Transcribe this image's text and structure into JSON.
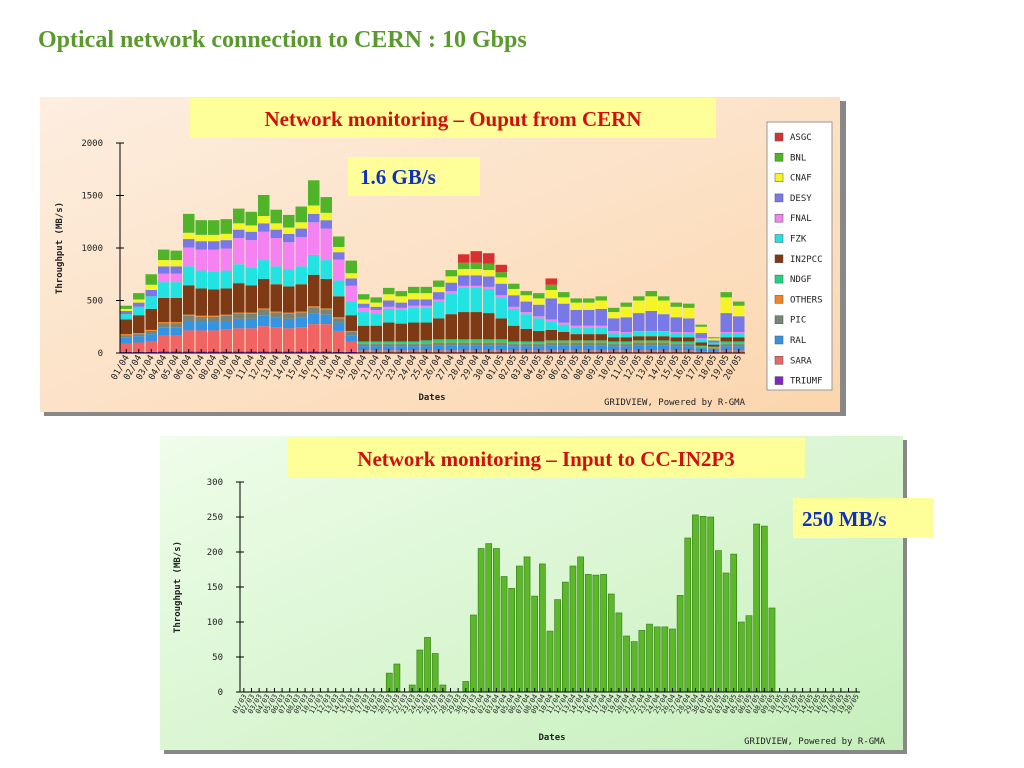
{
  "title": "Optical network connection to CERN : 10 Gbps",
  "chart_data": [
    {
      "type": "stacked_bar",
      "title": "Network monitoring – Ouput from CERN",
      "annotation": "1.6 GB/s",
      "xlabel": "Dates",
      "ylabel": "Throughput (MB/s)",
      "credit": "GRIDVIEW, Powered by R-GMA",
      "ylim": [
        0,
        2000
      ],
      "yticks": [
        0,
        500,
        1000,
        1500,
        2000
      ],
      "categories": [
        "01/04",
        "02/04",
        "03/04",
        "04/04",
        "05/04",
        "06/04",
        "07/04",
        "08/04",
        "09/04",
        "10/04",
        "11/04",
        "12/04",
        "13/04",
        "14/04",
        "15/04",
        "16/04",
        "17/04",
        "18/04",
        "19/04",
        "20/04",
        "21/04",
        "22/04",
        "23/04",
        "24/04",
        "25/04",
        "26/04",
        "27/04",
        "28/04",
        "29/04",
        "30/04",
        "01/05",
        "02/05",
        "03/05",
        "04/05",
        "05/05",
        "06/05",
        "07/05",
        "08/05",
        "09/05",
        "10/05",
        "11/05",
        "12/05",
        "13/05",
        "14/05",
        "15/05",
        "16/05",
        "17/05",
        "18/05",
        "19/05",
        "20/05"
      ],
      "series": [
        {
          "name": "ASGC",
          "color": "#d83030",
          "values": [
            0,
            0,
            0,
            0,
            0,
            0,
            0,
            0,
            0,
            0,
            0,
            0,
            0,
            0,
            0,
            0,
            0,
            0,
            0,
            0,
            0,
            0,
            0,
            0,
            0,
            0,
            0,
            80,
            110,
            100,
            70,
            0,
            0,
            0,
            60,
            0,
            0,
            0,
            0,
            0,
            0,
            0,
            0,
            0,
            0,
            0,
            0,
            0,
            0,
            0
          ]
        },
        {
          "name": "BNL",
          "color": "#50b428",
          "values": [
            30,
            60,
            100,
            100,
            90,
            180,
            140,
            140,
            140,
            140,
            130,
            200,
            130,
            120,
            150,
            240,
            150,
            100,
            120,
            50,
            50,
            60,
            50,
            60,
            60,
            60,
            60,
            60,
            60,
            60,
            50,
            50,
            40,
            50,
            50,
            50,
            40,
            40,
            40,
            40,
            40,
            40,
            50,
            40,
            40,
            40,
            20,
            10,
            50,
            40
          ]
        },
        {
          "name": "CNAF",
          "color": "#f4f428",
          "values": [
            20,
            30,
            50,
            60,
            60,
            60,
            60,
            60,
            60,
            60,
            60,
            70,
            60,
            60,
            60,
            80,
            70,
            50,
            50,
            40,
            40,
            60,
            60,
            60,
            60,
            50,
            60,
            60,
            60,
            60,
            60,
            60,
            60,
            60,
            80,
            60,
            70,
            70,
            80,
            60,
            100,
            120,
            140,
            130,
            100,
            100,
            60,
            20,
            150,
            100
          ]
        },
        {
          "name": "DESY",
          "color": "#7878e6",
          "values": [
            30,
            40,
            60,
            70,
            70,
            80,
            80,
            80,
            80,
            80,
            80,
            80,
            80,
            80,
            80,
            80,
            80,
            70,
            70,
            40,
            30,
            60,
            50,
            60,
            60,
            70,
            80,
            100,
            100,
            100,
            110,
            110,
            100,
            110,
            200,
            180,
            150,
            150,
            160,
            120,
            140,
            170,
            190,
            160,
            140,
            130,
            50,
            20,
            180,
            150
          ]
        },
        {
          "name": "FNAL",
          "color": "#f482f0",
          "values": [
            0,
            0,
            0,
            80,
            80,
            180,
            200,
            210,
            210,
            250,
            260,
            270,
            270,
            260,
            280,
            310,
            300,
            200,
            150,
            40,
            30,
            20,
            20,
            20,
            20,
            20,
            20,
            20,
            20,
            20,
            20,
            20,
            20,
            20,
            20,
            20,
            20,
            20,
            20,
            20,
            10,
            10,
            10,
            10,
            10,
            10,
            10,
            0,
            10,
            10
          ]
        },
        {
          "name": "FZK",
          "color": "#22e2e2",
          "values": [
            50,
            80,
            120,
            150,
            150,
            180,
            170,
            170,
            170,
            180,
            170,
            180,
            170,
            160,
            170,
            190,
            180,
            150,
            130,
            130,
            120,
            130,
            130,
            140,
            140,
            160,
            200,
            230,
            230,
            230,
            200,
            160,
            140,
            120,
            80,
            70,
            60,
            60,
            60,
            40,
            40,
            40,
            40,
            40,
            40,
            40,
            30,
            20,
            40,
            40
          ]
        },
        {
          "name": "IN2PCC",
          "color": "#7e3a14",
          "values": [
            140,
            170,
            200,
            230,
            230,
            280,
            260,
            250,
            250,
            280,
            260,
            280,
            260,
            250,
            260,
            300,
            280,
            200,
            150,
            150,
            150,
            180,
            170,
            180,
            170,
            200,
            240,
            260,
            260,
            250,
            200,
            150,
            120,
            100,
            100,
            80,
            60,
            60,
            60,
            40,
            40,
            40,
            40,
            40,
            40,
            40,
            30,
            20,
            40,
            40
          ]
        },
        {
          "name": "NDGF",
          "color": "#20d482",
          "values": [
            0,
            0,
            0,
            0,
            0,
            0,
            0,
            0,
            0,
            0,
            0,
            0,
            0,
            0,
            0,
            0,
            0,
            0,
            0,
            20,
            20,
            20,
            20,
            20,
            30,
            30,
            30,
            30,
            30,
            30,
            30,
            20,
            20,
            20,
            20,
            20,
            20,
            20,
            20,
            20,
            20,
            20,
            20,
            20,
            20,
            20,
            10,
            10,
            20,
            20
          ]
        },
        {
          "name": "OTHERS",
          "color": "#f08424",
          "values": [
            10,
            10,
            10,
            10,
            10,
            10,
            10,
            10,
            10,
            10,
            10,
            10,
            10,
            10,
            10,
            10,
            10,
            10,
            10,
            5,
            5,
            5,
            5,
            5,
            5,
            5,
            5,
            5,
            5,
            5,
            5,
            5,
            5,
            5,
            5,
            5,
            5,
            5,
            5,
            5,
            5,
            5,
            5,
            5,
            5,
            5,
            5,
            5,
            5,
            5
          ]
        },
        {
          "name": "PIC",
          "color": "#788478",
          "values": [
            20,
            20,
            30,
            40,
            40,
            50,
            50,
            50,
            50,
            50,
            50,
            60,
            50,
            50,
            50,
            60,
            50,
            40,
            30,
            20,
            20,
            20,
            20,
            20,
            20,
            20,
            20,
            20,
            20,
            20,
            20,
            20,
            20,
            20,
            20,
            20,
            20,
            20,
            20,
            20,
            20,
            20,
            20,
            20,
            20,
            20,
            10,
            10,
            20,
            20
          ]
        },
        {
          "name": "RAL",
          "color": "#3494e2",
          "values": [
            60,
            60,
            70,
            80,
            80,
            90,
            80,
            80,
            80,
            90,
            90,
            100,
            90,
            90,
            90,
            100,
            90,
            80,
            60,
            40,
            40,
            40,
            40,
            40,
            40,
            50,
            50,
            50,
            50,
            50,
            50,
            40,
            40,
            40,
            50,
            50,
            50,
            50,
            50,
            40,
            40,
            50,
            50,
            50,
            40,
            40,
            30,
            20,
            40,
            40
          ]
        },
        {
          "name": "SARA",
          "color": "#f06464",
          "values": [
            80,
            90,
            100,
            150,
            150,
            200,
            200,
            200,
            210,
            220,
            220,
            240,
            230,
            220,
            230,
            260,
            260,
            200,
            100,
            20,
            20,
            20,
            20,
            20,
            20,
            20,
            20,
            20,
            20,
            20,
            20,
            20,
            20,
            20,
            20,
            20,
            20,
            20,
            20,
            20,
            20,
            20,
            20,
            20,
            20,
            20,
            10,
            10,
            20,
            20
          ]
        },
        {
          "name": "TRIUMF",
          "color": "#8424c4",
          "values": [
            10,
            10,
            10,
            15,
            15,
            15,
            15,
            15,
            15,
            15,
            15,
            15,
            15,
            15,
            15,
            15,
            15,
            10,
            10,
            5,
            5,
            5,
            5,
            5,
            5,
            5,
            5,
            5,
            5,
            5,
            5,
            5,
            5,
            5,
            5,
            5,
            5,
            5,
            5,
            5,
            5,
            5,
            5,
            5,
            5,
            5,
            5,
            5,
            5,
            5
          ]
        }
      ]
    },
    {
      "type": "bar",
      "title": "Network monitoring – Input to CC-IN2P3",
      "annotation": "250 MB/s",
      "xlabel": "Dates",
      "ylabel": "Throughput (MB/s)",
      "credit": "GRIDVIEW, Powered by R-GMA",
      "ylim": [
        0,
        300
      ],
      "yticks": [
        0,
        50,
        100,
        150,
        200,
        250,
        300
      ],
      "color": "#5cb82a",
      "categories": [
        "01/03",
        "02/03",
        "03/03",
        "04/03",
        "05/03",
        "06/03",
        "07/03",
        "08/03",
        "09/03",
        "10/03",
        "11/03",
        "12/03",
        "13/03",
        "14/03",
        "15/03",
        "16/03",
        "17/03",
        "18/03",
        "19/03",
        "20/03",
        "21/03",
        "22/03",
        "23/03",
        "24/03",
        "25/03",
        "26/03",
        "27/03",
        "28/03",
        "29/03",
        "30/03",
        "31/03",
        "01/04",
        "02/04",
        "03/04",
        "04/04",
        "05/04",
        "06/04",
        "07/04",
        "08/04",
        "09/04",
        "10/04",
        "11/04",
        "12/04",
        "13/04",
        "14/04",
        "15/04",
        "16/04",
        "17/04",
        "18/04",
        "19/04",
        "20/04",
        "21/04",
        "22/04",
        "23/04",
        "24/04",
        "25/04",
        "26/04",
        "27/04",
        "28/04",
        "29/04",
        "30/04",
        "01/05",
        "02/05",
        "03/05",
        "04/05",
        "05/05",
        "06/05",
        "07/05",
        "08/05",
        "09/05",
        "10/05",
        "11/05",
        "12/05",
        "13/05",
        "14/05",
        "15/05",
        "16/05",
        "17/05",
        "18/05",
        "19/05",
        "20/05"
      ],
      "values": [
        0,
        0,
        0,
        0,
        0,
        0,
        0,
        0,
        0,
        0,
        0,
        0,
        0,
        0,
        0,
        0,
        0,
        0,
        0,
        27,
        40,
        0,
        10,
        60,
        78,
        55,
        10,
        0,
        0,
        15,
        110,
        205,
        212,
        205,
        165,
        148,
        180,
        193,
        137,
        183,
        87,
        132,
        157,
        180,
        193,
        168,
        167,
        168,
        140,
        113,
        80,
        72,
        88,
        97,
        93,
        93,
        90,
        138,
        220,
        253,
        251,
        250,
        202,
        170,
        197,
        100,
        109,
        240,
        237,
        120,
        0,
        0,
        0,
        0,
        0,
        0,
        0,
        0,
        0,
        0,
        0
      ]
    }
  ]
}
